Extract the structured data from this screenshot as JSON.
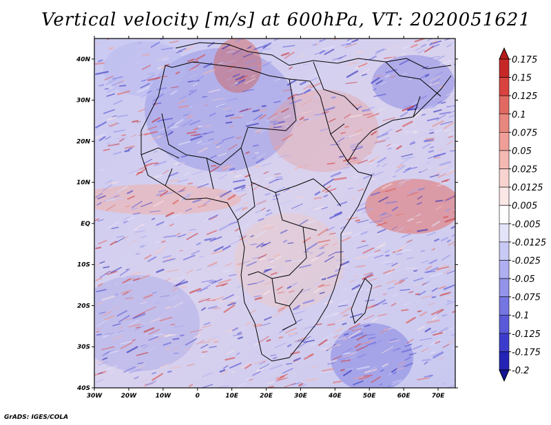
{
  "title": "Vertical velocity [m/s] at 600hPa, VT: 2020051621",
  "credit": "GrADS: IGES/COLA",
  "map": {
    "lon_range": [
      -30,
      75
    ],
    "lat_range": [
      -40,
      45
    ],
    "x_ticks": [
      "30W",
      "20W",
      "10W",
      "0",
      "10E",
      "20E",
      "30E",
      "40E",
      "50E",
      "60E",
      "70E"
    ],
    "x_tick_values": [
      -30,
      -20,
      -10,
      0,
      10,
      20,
      30,
      40,
      50,
      60,
      70
    ],
    "y_ticks": [
      "40S",
      "30S",
      "20S",
      "10S",
      "EQ",
      "10N",
      "20N",
      "30N",
      "40N"
    ],
    "y_tick_values": [
      -40,
      -30,
      -20,
      -10,
      0,
      10,
      20,
      30,
      40
    ]
  },
  "colorbar": {
    "labels": [
      "0.175",
      "0.15",
      "0.125",
      "0.1",
      "0.075",
      "0.05",
      "0.025",
      "0.0125",
      "0.005",
      "-0.005",
      "-0.0125",
      "-0.025",
      "-0.05",
      "-0.075",
      "-0.1",
      "-0.125",
      "-0.175",
      "-0.2"
    ],
    "colors": [
      "#b71c1c",
      "#c62828",
      "#d9433f",
      "#e06a62",
      "#e8877f",
      "#ef9f98",
      "#f4b9b3",
      "#f8d3cf",
      "#fbe8e6",
      "#ffffff",
      "#e3e3fa",
      "#c9c9f5",
      "#aeaef0",
      "#9393ea",
      "#7676e2",
      "#5a5ad8",
      "#3c3ccc",
      "#2323b5",
      "#141496"
    ]
  }
}
